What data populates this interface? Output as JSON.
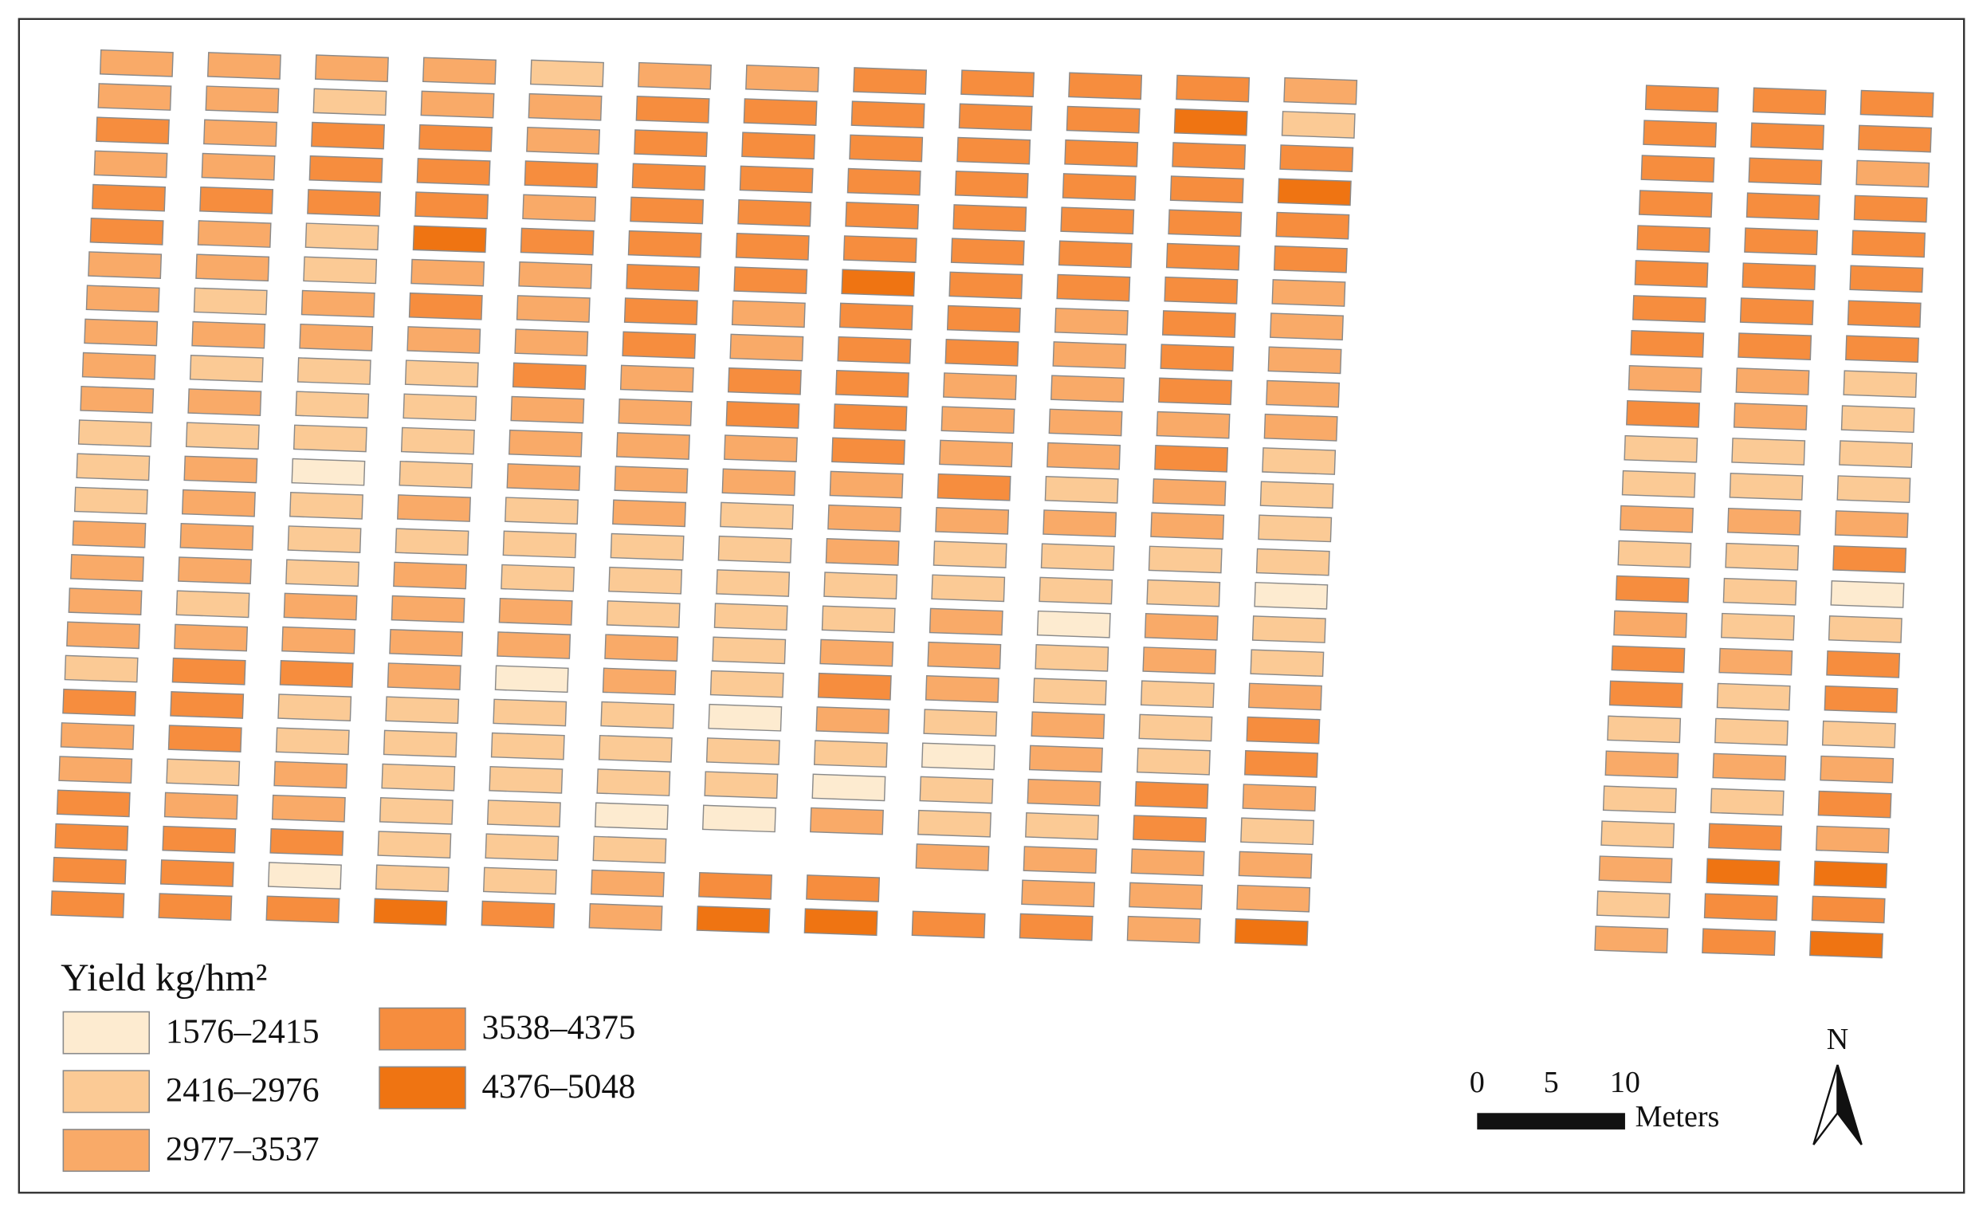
{
  "map": {
    "legend": {
      "title": "Yield  kg/hm²",
      "classes": [
        {
          "label": "1576–2415",
          "color": "#fdebd0"
        },
        {
          "label": "2416–2976",
          "color": "#fbca95"
        },
        {
          "label": "2977–3537",
          "color": "#f9aa68"
        },
        {
          "label": "3538–4375",
          "color": "#f68d3e"
        },
        {
          "label": "4376–5048",
          "color": "#ef7412"
        }
      ]
    },
    "scale_bar": {
      "ticks": [
        0,
        5,
        10
      ],
      "unit": "Meters"
    },
    "north": "N",
    "plots": {
      "left": [
        [
          2,
          2,
          3,
          2,
          3,
          3,
          2,
          2,
          2,
          2,
          2,
          1,
          1,
          1,
          2,
          2,
          2,
          2,
          1,
          3,
          2,
          2,
          3,
          3,
          3,
          3
        ],
        [
          2,
          2,
          2,
          2,
          3,
          2,
          2,
          1,
          2,
          1,
          2,
          1,
          2,
          2,
          2,
          2,
          1,
          2,
          3,
          3,
          3,
          1,
          2,
          3,
          3,
          3
        ],
        [
          2,
          1,
          3,
          3,
          3,
          1,
          1,
          2,
          2,
          1,
          1,
          1,
          0,
          1,
          1,
          1,
          2,
          2,
          3,
          1,
          1,
          2,
          2,
          3,
          0,
          3
        ],
        [
          2,
          2,
          3,
          3,
          3,
          4,
          2,
          3,
          2,
          1,
          1,
          1,
          1,
          2,
          1,
          2,
          2,
          2,
          2,
          1,
          1,
          1,
          1,
          1,
          1,
          4
        ],
        [
          1,
          2,
          2,
          3,
          2,
          3,
          2,
          2,
          2,
          3,
          2,
          2,
          2,
          1,
          1,
          1,
          2,
          2,
          0,
          1,
          1,
          1,
          1,
          1,
          1,
          3
        ],
        [
          2,
          3,
          3,
          3,
          3,
          3,
          3,
          3,
          3,
          2,
          2,
          2,
          2,
          2,
          1,
          1,
          1,
          2,
          2,
          1,
          1,
          1,
          0,
          1,
          2,
          2
        ],
        [
          2,
          3,
          3,
          3,
          3,
          3,
          3,
          2,
          2,
          3,
          3,
          2,
          2,
          1,
          1,
          1,
          1,
          1,
          1,
          0,
          1,
          1,
          0,
          null,
          3,
          4
        ],
        [
          3,
          3,
          3,
          3,
          3,
          3,
          4,
          3,
          3,
          3,
          3,
          3,
          2,
          2,
          2,
          1,
          1,
          2,
          3,
          2,
          1,
          0,
          2,
          null,
          3,
          4
        ],
        [
          3,
          3,
          3,
          3,
          3,
          3,
          3,
          3,
          3,
          2,
          2,
          2,
          3,
          2,
          1,
          1,
          2,
          2,
          2,
          1,
          0,
          1,
          1,
          2,
          null,
          3
        ],
        [
          3,
          3,
          3,
          3,
          3,
          3,
          3,
          2,
          2,
          2,
          2,
          2,
          1,
          2,
          1,
          1,
          0,
          1,
          1,
          2,
          2,
          2,
          1,
          2,
          2,
          3
        ],
        [
          3,
          4,
          3,
          3,
          3,
          3,
          3,
          3,
          3,
          3,
          2,
          3,
          2,
          2,
          1,
          1,
          2,
          2,
          1,
          1,
          1,
          3,
          3,
          2,
          2,
          2
        ],
        [
          2,
          1,
          3,
          4,
          3,
          3,
          2,
          2,
          2,
          2,
          2,
          1,
          1,
          1,
          1,
          0,
          1,
          1,
          2,
          3,
          3,
          2,
          1,
          2,
          2,
          4
        ]
      ],
      "right": [
        [
          3,
          3,
          3,
          3,
          3,
          3,
          3,
          3,
          2,
          3,
          1,
          1,
          2,
          1,
          3,
          2,
          3,
          3,
          1,
          2,
          1,
          1,
          2,
          1,
          2
        ],
        [
          3,
          3,
          3,
          3,
          3,
          3,
          3,
          3,
          2,
          2,
          1,
          1,
          2,
          1,
          1,
          1,
          2,
          1,
          1,
          2,
          1,
          3,
          4,
          3,
          3
        ],
        [
          3,
          3,
          2,
          3,
          3,
          3,
          3,
          3,
          1,
          1,
          1,
          1,
          2,
          3,
          0,
          1,
          3,
          3,
          1,
          2,
          3,
          2,
          4,
          3,
          4
        ]
      ]
    }
  }
}
